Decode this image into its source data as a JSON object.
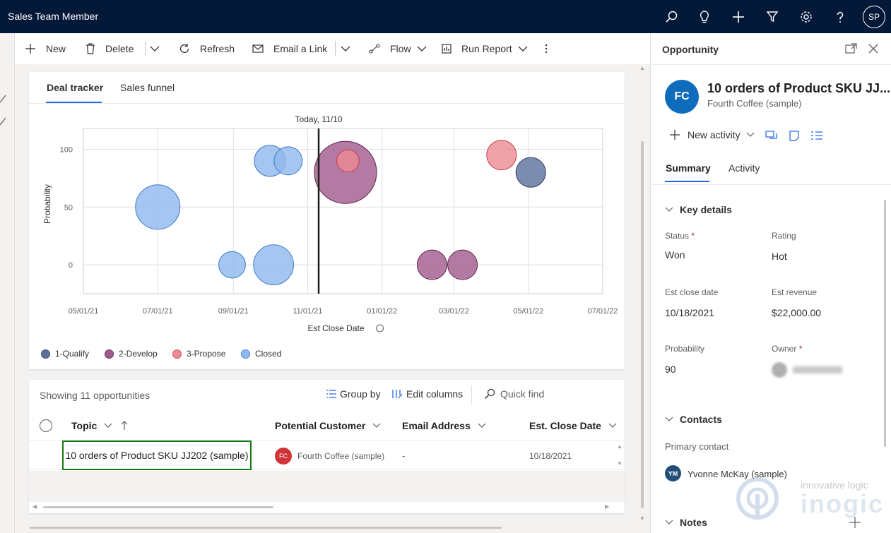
{
  "topbar": {
    "app_title": "Sales Team Member",
    "avatar": "SP"
  },
  "toolbar": {
    "new": "New",
    "delete": "Delete",
    "refresh": "Refresh",
    "email_link": "Email a Link",
    "flow": "Flow",
    "run_report": "Run Report"
  },
  "chart_tabs": {
    "deal_tracker": "Deal tracker",
    "sales_funnel": "Sales funnel"
  },
  "chart_data": {
    "type": "scatter",
    "subtype": "bubble",
    "today_label": "Today, 11/10",
    "xlabel": "Est Close Date",
    "ylabel": "Probability",
    "x_ticks": [
      "05/01/21",
      "07/01/21",
      "09/01/21",
      "11/01/21",
      "01/01/22",
      "03/01/22",
      "05/01/22",
      "07/01/22"
    ],
    "y_ticks": [
      "100",
      "50",
      "0"
    ],
    "ylim": [
      -25,
      118
    ],
    "xlim": [
      "2021-05-01",
      "2022-07-01"
    ],
    "today": "2021-11-10",
    "grid": true,
    "legend_position": "bottom-left",
    "series": [
      {
        "name": "1-Qualify",
        "color": "#5b6f9c",
        "points": [
          {
            "x": "2022-05-03",
            "y": 80,
            "size": 1.0
          }
        ]
      },
      {
        "name": "2-Develop",
        "color": "#a05a8c",
        "points": [
          {
            "x": "2021-12-02",
            "y": 80,
            "size": 2.1
          },
          {
            "x": "2022-02-11",
            "y": 0,
            "size": 1.0
          },
          {
            "x": "2022-03-08",
            "y": 0,
            "size": 1.0
          }
        ]
      },
      {
        "name": "3-Propose",
        "color": "#ec8b94",
        "points": [
          {
            "x": "2022-04-09",
            "y": 95,
            "size": 1.0
          },
          {
            "x": "2021-12-04",
            "y": 90,
            "size": 0.75
          }
        ]
      },
      {
        "name": "Closed",
        "color": "#8fb8ee",
        "points": [
          {
            "x": "2021-07-01",
            "y": 50,
            "size": 1.5
          },
          {
            "x": "2021-08-31",
            "y": 0,
            "size": 0.9
          },
          {
            "x": "2021-10-04",
            "y": 0,
            "size": 1.35
          },
          {
            "x": "2021-10-01",
            "y": 90,
            "size": 1.05
          },
          {
            "x": "2021-10-16",
            "y": 90,
            "size": 0.95
          }
        ]
      }
    ]
  },
  "grid": {
    "showing": "Showing 11 opportunities",
    "group_by": "Group by",
    "edit_columns": "Edit columns",
    "quick_find": "Quick find",
    "columns": [
      "Topic",
      "Potential Customer",
      "Email Address",
      "Est. Close Date"
    ],
    "rows": [
      {
        "topic": "10 orders of Product SKU JJ202 (sample)",
        "customer_initials": "FC",
        "customer": "Fourth Coffee (sample)",
        "email": "-",
        "close_date": "10/18/2021"
      }
    ]
  },
  "panel": {
    "header": "Opportunity",
    "avatar": "FC",
    "title": "10 orders of Product SKU JJ...",
    "subtitle": "Fourth Coffee (sample)",
    "new_activity": "New activity",
    "tabs": [
      "Summary",
      "Activity"
    ],
    "key_details": "Key details",
    "fields": {
      "status_label": "Status",
      "status_value": "Won",
      "rating_label": "Rating",
      "rating_value": "Hot",
      "close_label": "Est close date",
      "close_value": "10/18/2021",
      "revenue_label": "Est revenue",
      "revenue_value": "$22,000.00",
      "probability_label": "Probability",
      "probability_value": "90",
      "owner_label": "Owner"
    },
    "contacts": "Contacts",
    "primary_contact_label": "Primary contact",
    "contact_initials": "YM",
    "contact_name": "Yvonne McKay (sample)",
    "notes": "Notes"
  },
  "watermark": {
    "line1": "innovative logic",
    "line2": "inogic"
  },
  "colors": {
    "topbar": "#041838",
    "accent": "#2266e3",
    "highlight_border": "#107c10",
    "fc_avatar": "#d13438",
    "ym_avatar": "#1f4e79"
  }
}
